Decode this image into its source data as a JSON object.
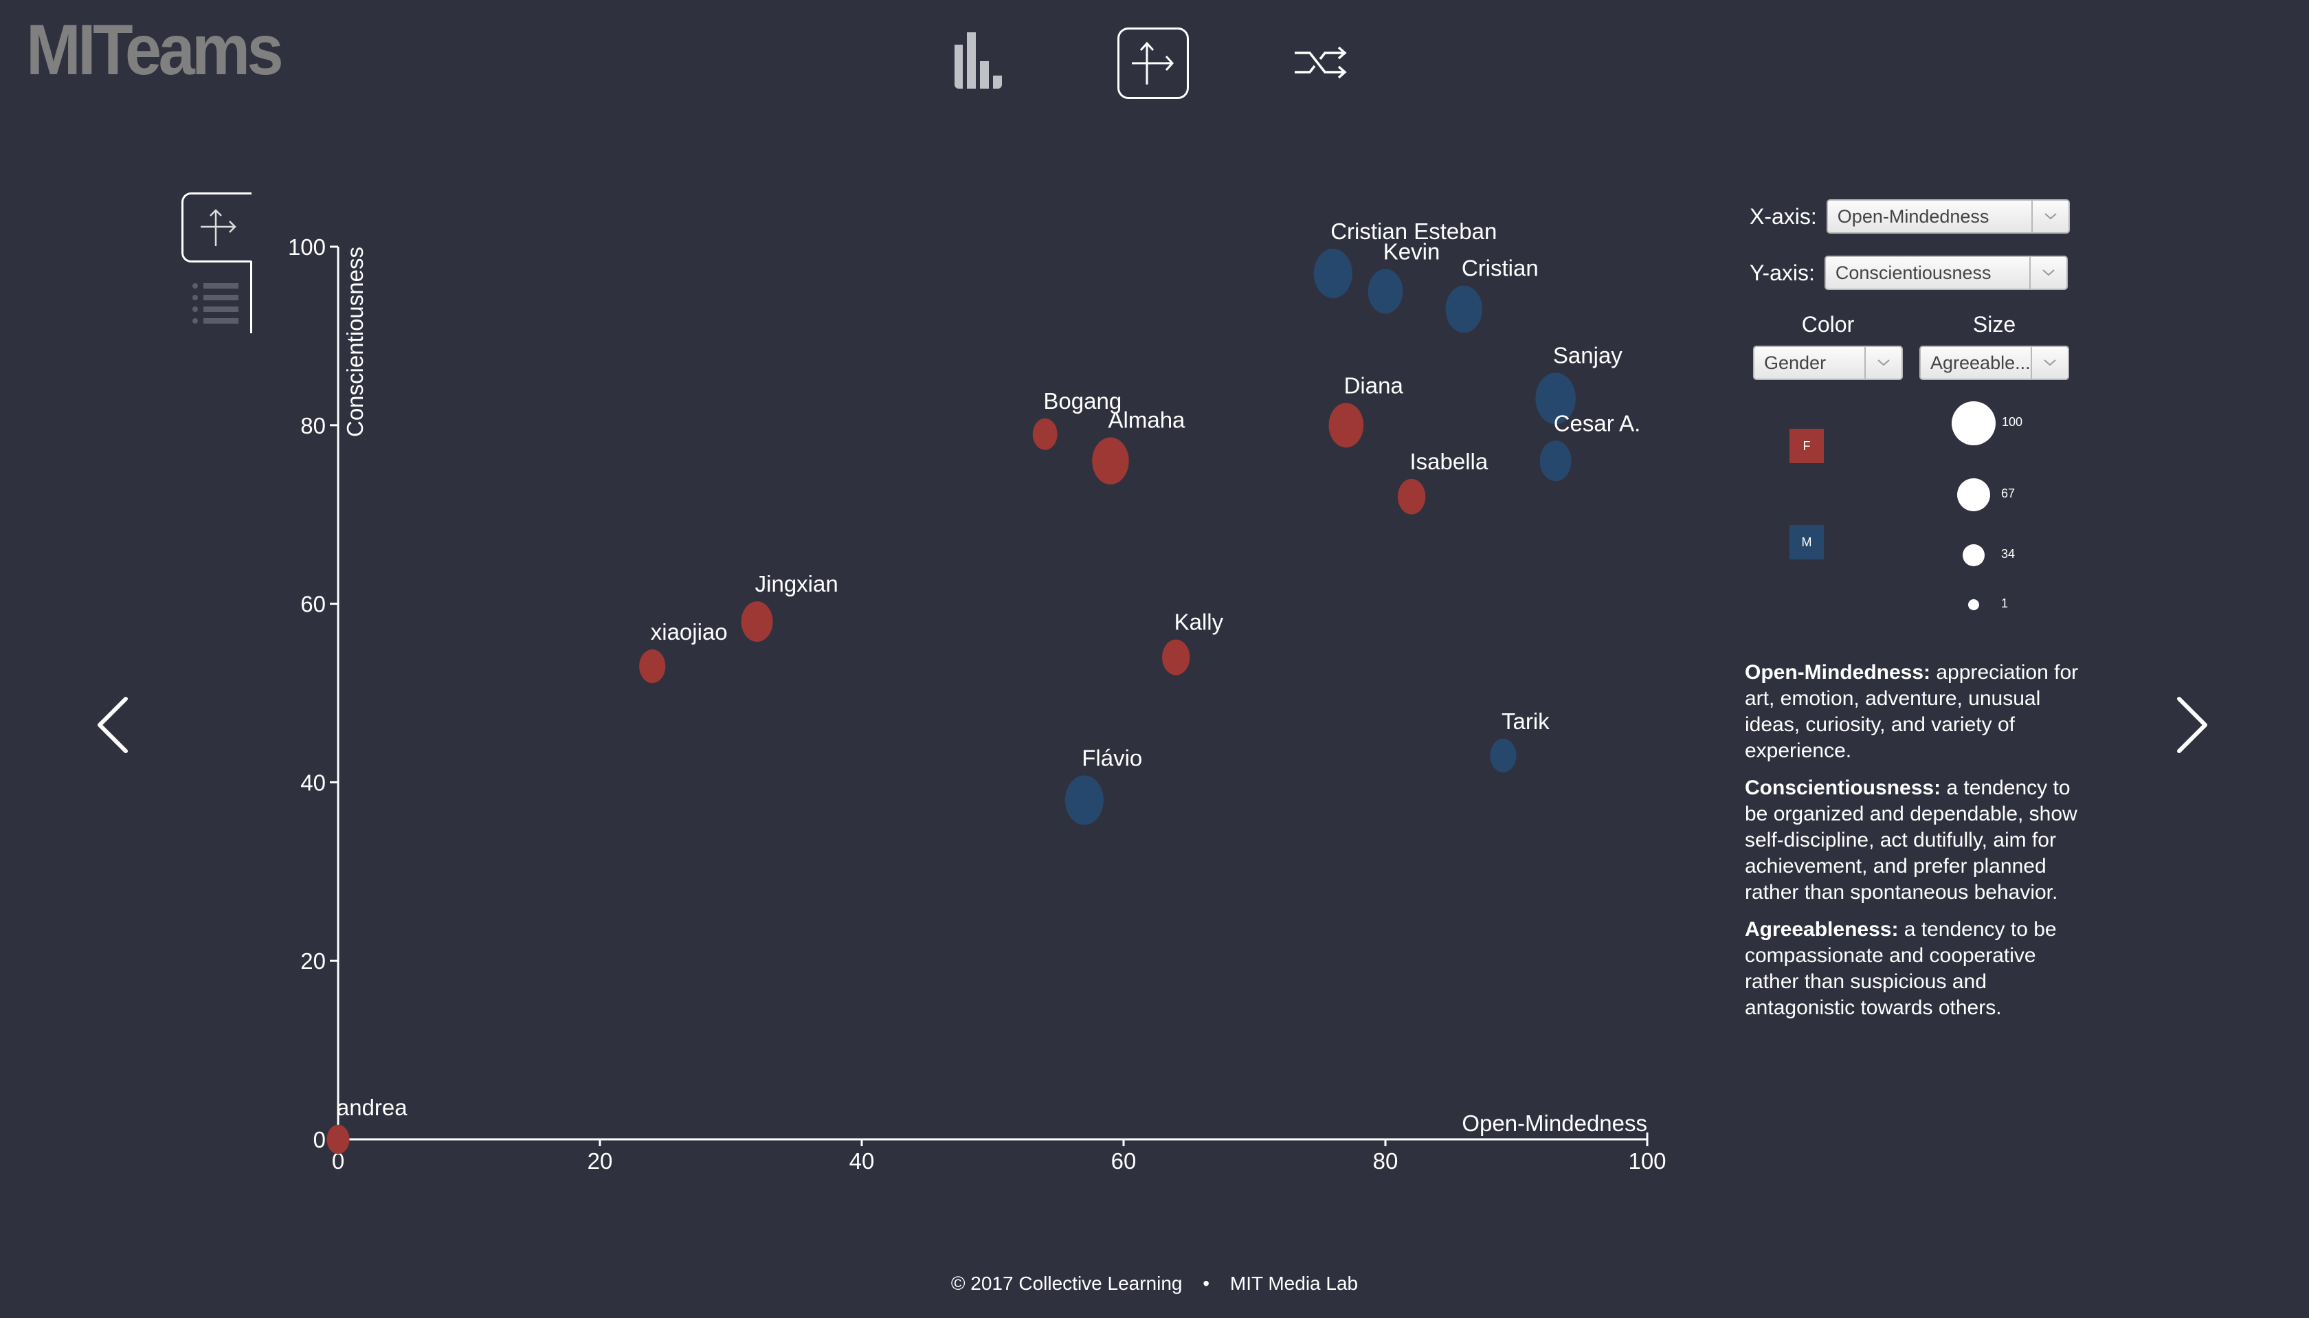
{
  "app": {
    "title": "MITeams"
  },
  "topnav": {
    "items": [
      {
        "name": "bar-chart-view",
        "icon": "bar-chart-icon",
        "active": false
      },
      {
        "name": "scatter-view",
        "icon": "axes-icon",
        "active": true
      },
      {
        "name": "shuffle-view",
        "icon": "shuffle-icon",
        "active": false
      }
    ]
  },
  "side_tabs": [
    {
      "name": "scatter-tab",
      "icon": "axes-icon",
      "active": true
    },
    {
      "name": "list-tab",
      "icon": "list-icon",
      "active": false
    }
  ],
  "navigation": {
    "prev_icon": "chevron-left-icon",
    "next_icon": "chevron-right-icon"
  },
  "controls": {
    "x_axis_label": "X-axis:",
    "x_axis_value": "Open-Mindedness",
    "y_axis_label": "Y-axis:",
    "y_axis_value": "Conscientiousness",
    "color_label": "Color",
    "color_value": "Gender",
    "size_label": "Size",
    "size_value": "Agreeable..."
  },
  "color_legend": [
    {
      "label": "F",
      "color": "#9e3834"
    },
    {
      "label": "M",
      "color": "#26486d"
    }
  ],
  "size_legend": [
    {
      "label": "100",
      "value": 100
    },
    {
      "label": "67",
      "value": 67
    },
    {
      "label": "34",
      "value": 34
    },
    {
      "label": "1",
      "value": 1
    }
  ],
  "descriptions": [
    {
      "term": "Open-Mindedness:",
      "text": " appreciation for art, emotion, adventure, unusual ideas, curiosity, and variety of experience."
    },
    {
      "term": "Conscientiousness:",
      "text": " a tendency to be organized and dependable, show self-discipline, act dutifully, aim for achievement, and prefer planned rather than spontaneous behavior."
    },
    {
      "term": "Agreeableness:",
      "text": " a tendency to be compassionate and cooperative rather than suspicious and antagonistic towards others."
    }
  ],
  "footer": {
    "left": "© 2017 Collective Learning",
    "separator": "•",
    "right": "MIT Media Lab"
  },
  "chart_data": {
    "type": "scatter",
    "title": "",
    "xlabel": "Open-Mindedness",
    "ylabel": "Conscientiousness",
    "xlim": [
      0,
      100
    ],
    "ylim": [
      0,
      100
    ],
    "xticks": [
      0,
      20,
      40,
      60,
      80,
      100
    ],
    "yticks": [
      0,
      20,
      40,
      60,
      80,
      100
    ],
    "grid": false,
    "color_by": "Gender",
    "size_by": "Agreeableness",
    "colors": {
      "F": "#9e3834",
      "M": "#26486d"
    },
    "points": [
      {
        "name": "Cristian Esteban",
        "x": 76,
        "y": 97,
        "gender": "M",
        "size": 80
      },
      {
        "name": "Kevin",
        "x": 80,
        "y": 95,
        "gender": "M",
        "size": 60
      },
      {
        "name": "Cristian",
        "x": 86,
        "y": 93,
        "gender": "M",
        "size": 70
      },
      {
        "name": "Sanjay",
        "x": 93,
        "y": 83,
        "gender": "M",
        "size": 90
      },
      {
        "name": "Cesar A.",
        "x": 93,
        "y": 76,
        "gender": "M",
        "size": 45
      },
      {
        "name": "Diana",
        "x": 77,
        "y": 80,
        "gender": "F",
        "size": 60
      },
      {
        "name": "Isabella",
        "x": 82,
        "y": 72,
        "gender": "F",
        "size": 30
      },
      {
        "name": "Bogang",
        "x": 54,
        "y": 79,
        "gender": "F",
        "size": 20
      },
      {
        "name": "Almaha",
        "x": 59,
        "y": 76,
        "gender": "F",
        "size": 70
      },
      {
        "name": "Jingxian",
        "x": 32,
        "y": 58,
        "gender": "F",
        "size": 45
      },
      {
        "name": "xiaojiao",
        "x": 24,
        "y": 53,
        "gender": "F",
        "size": 25
      },
      {
        "name": "Kally",
        "x": 64,
        "y": 54,
        "gender": "F",
        "size": 30
      },
      {
        "name": "Flávio",
        "x": 57,
        "y": 38,
        "gender": "M",
        "size": 80
      },
      {
        "name": "Tarik",
        "x": 89,
        "y": 43,
        "gender": "M",
        "size": 25
      },
      {
        "name": "andrea",
        "x": 0,
        "y": 0,
        "gender": "F",
        "size": 15
      }
    ]
  }
}
